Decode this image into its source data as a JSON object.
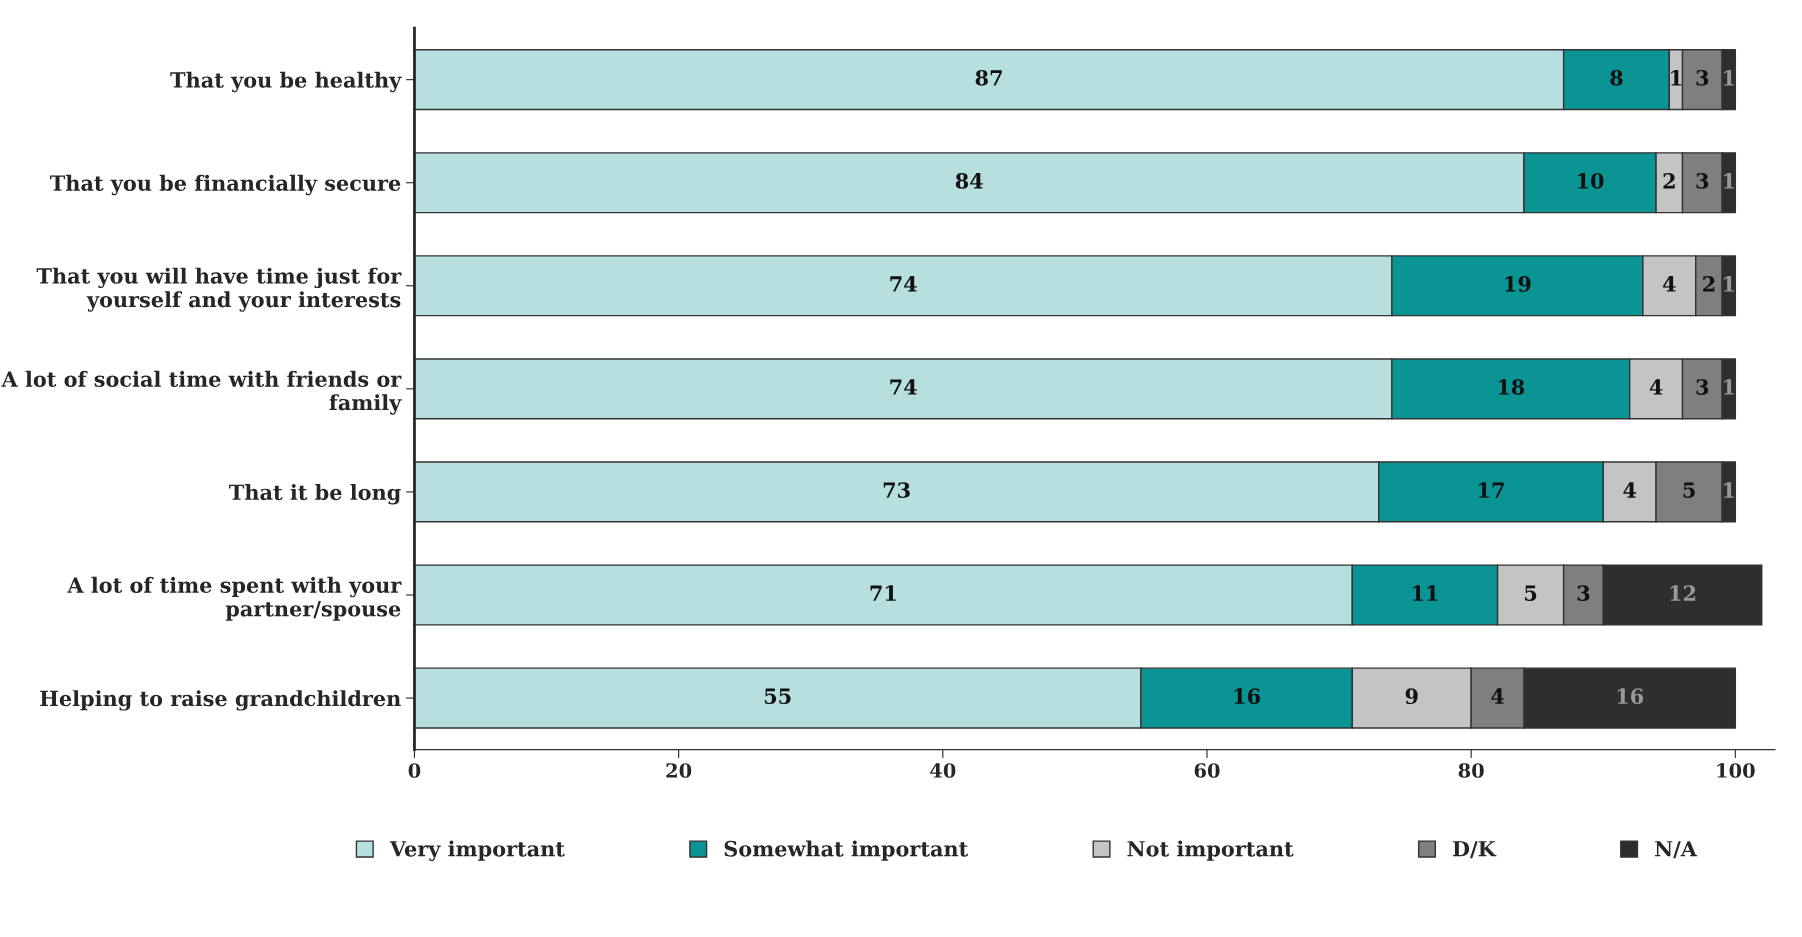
{
  "chart_data": {
    "type": "bar",
    "orientation": "horizontal",
    "stacked": true,
    "data_labels": true,
    "legend": "bottom",
    "grid": false,
    "categories": [
      "That you be healthy",
      "That you be financially secure",
      "That you will have time just for yourself and your interests",
      "A lot of social time with friends or family",
      "That it be long",
      "A lot of time spent with your partner/spouse",
      "Helping to raise grandchildren"
    ],
    "series": [
      {
        "name": "Very important",
        "color": "#b8dfe0",
        "values": [
          87,
          84,
          74,
          74,
          73,
          71,
          55
        ]
      },
      {
        "name": "Somewhat important",
        "color": "#0a9494",
        "values": [
          8,
          10,
          19,
          18,
          17,
          11,
          16
        ]
      },
      {
        "name": "Not important",
        "color": "#c4c4c4",
        "values": [
          1,
          2,
          4,
          4,
          4,
          5,
          9
        ]
      },
      {
        "name": "D/K",
        "color": "#7f7f7f",
        "values": [
          3,
          3,
          2,
          3,
          5,
          3,
          4
        ]
      },
      {
        "name": "N/A",
        "color": "#2e2e2e",
        "values": [
          1,
          1,
          1,
          1,
          1,
          12,
          16
        ]
      }
    ],
    "xlim": [
      0,
      103
    ],
    "xticks": [
      0,
      20,
      40,
      60,
      80,
      100
    ]
  }
}
